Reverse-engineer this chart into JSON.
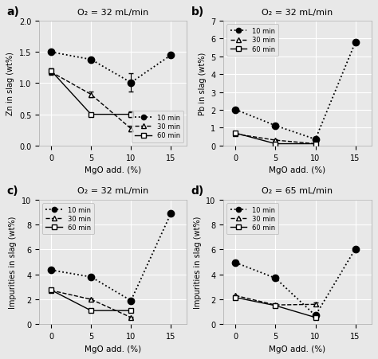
{
  "x": [
    0,
    5,
    10,
    15
  ],
  "panel_a": {
    "title": "O₂ = 32 mL/min",
    "ylabel": "Zn in slag (wt%)",
    "xlabel": "MgO add. (%)",
    "ylim": [
      0.0,
      2.0
    ],
    "yticks": [
      0.0,
      0.5,
      1.0,
      1.5,
      2.0
    ],
    "series_10min": [
      1.5,
      1.38,
      1.01,
      1.45
    ],
    "series_30min": [
      1.18,
      0.82,
      0.27,
      null
    ],
    "series_60min": [
      1.2,
      0.5,
      0.5,
      null
    ],
    "err_10min": [
      0.02,
      0.02,
      0.15,
      0.02
    ],
    "err_30min": [
      0.05,
      0.05,
      0.04,
      null
    ],
    "err_60min": [
      0.04,
      0.0,
      0.04,
      null
    ],
    "legend_loc": "lower right"
  },
  "panel_b": {
    "title": "O₂ = 32 mL/min",
    "ylabel": "Pb in slag (wt%)",
    "xlabel": "MgO add. (%)",
    "ylim": [
      0.0,
      7.0
    ],
    "yticks": [
      0.0,
      1.0,
      2.0,
      3.0,
      4.0,
      5.0,
      6.0,
      7.0
    ],
    "series_10min": [
      2.02,
      1.12,
      0.35,
      5.8
    ],
    "series_30min": [
      0.65,
      0.3,
      0.1,
      null
    ],
    "series_60min": [
      0.7,
      0.1,
      0.1,
      null
    ],
    "err_10min": [
      0.04,
      0.04,
      0.04,
      0.12
    ],
    "err_30min": [
      0.04,
      0.04,
      0.04,
      null
    ],
    "err_60min": [
      0.04,
      0.02,
      0.02,
      null
    ],
    "legend_loc": "upper left"
  },
  "panel_c": {
    "title": "O₂ = 32 mL/min",
    "ylabel": "Impurities in slag (wt%)",
    "xlabel": "MgO add. (%)",
    "ylim": [
      0.0,
      10.0
    ],
    "yticks": [
      0.0,
      2.0,
      4.0,
      6.0,
      8.0,
      10.0
    ],
    "series_10min": [
      4.35,
      3.8,
      1.9,
      8.9
    ],
    "series_30min": [
      2.72,
      2.0,
      0.55,
      null
    ],
    "series_60min": [
      2.75,
      1.1,
      1.1,
      null
    ],
    "err_10min": [
      0.05,
      0.1,
      0.1,
      0.12
    ],
    "err_30min": [
      0.05,
      0.05,
      0.05,
      null
    ],
    "err_60min": [
      0.05,
      0.02,
      0.05,
      null
    ],
    "legend_loc": "upper left"
  },
  "panel_d": {
    "title": "O₂ = 65 mL/min",
    "ylabel": "Impurities in slag (wt%)",
    "xlabel": "MgO add. (%)",
    "ylim": [
      0.0,
      10.0
    ],
    "yticks": [
      0.0,
      2.0,
      4.0,
      6.0,
      8.0,
      10.0
    ],
    "series_10min": [
      4.95,
      3.7,
      0.7,
      6.05
    ],
    "series_30min": [
      2.3,
      1.55,
      1.6,
      null
    ],
    "series_60min": [
      2.15,
      1.5,
      0.55,
      null
    ],
    "err_10min": [
      0.15,
      0.1,
      0.08,
      0.1
    ],
    "err_30min": [
      0.05,
      0.05,
      0.12,
      null
    ],
    "err_60min": [
      0.05,
      0.05,
      0.05,
      null
    ],
    "legend_loc": "upper left"
  },
  "legend_labels": [
    "10 min",
    "30 min",
    "60 min"
  ],
  "line_color": "#000000",
  "bg_color": "#e8e8e8"
}
